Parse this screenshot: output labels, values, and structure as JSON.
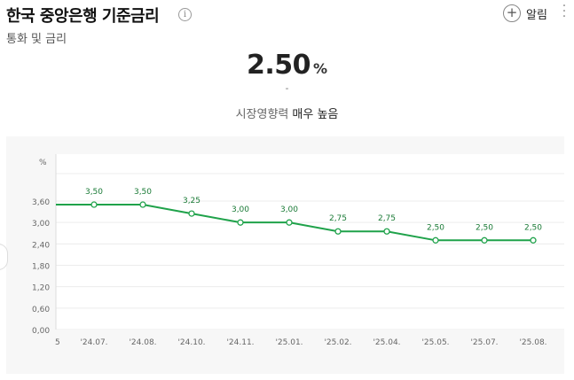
{
  "header": {
    "title": "한국 중앙은행 기준금리",
    "info_icon": "i",
    "subtitle": "통화 및 금리",
    "alarm_label": "알림",
    "plus_icon": "+",
    "more_icon": "⋮"
  },
  "summary": {
    "value": "2.50",
    "unit": "%",
    "change": "-",
    "influence_label": "시장영향력",
    "influence_value": "매우 높음"
  },
  "colors": {
    "line": "#1fa24a",
    "axis_text": "#666666",
    "label_text": "#1a7a36",
    "chart_bg": "#f7f7f7"
  },
  "chart_data": {
    "type": "line",
    "ylabel": "%",
    "ylim": [
      0,
      3.6
    ],
    "yticks": [
      "3,60",
      "3,00",
      "2,40",
      "1,80",
      "1,20",
      "0,60",
      "0,00"
    ],
    "x": [
      "'24.07.",
      "'24.08.",
      "'24.10.",
      "'24.11.",
      "'25.01.",
      "'25.02.",
      "'25.04.",
      "'25.05.",
      "'25.07.",
      "'25.08."
    ],
    "values": [
      3.5,
      3.5,
      3.25,
      3.0,
      3.0,
      2.75,
      2.75,
      2.5,
      2.5,
      2.5
    ],
    "data_labels": [
      "3,50",
      "3,50",
      "3,25",
      "3,00",
      "3,00",
      "2,75",
      "2,75",
      "2,50",
      "2,50",
      "2,50"
    ],
    "leading_value": 3.5,
    "leading_tick": "5",
    "grid": true
  }
}
